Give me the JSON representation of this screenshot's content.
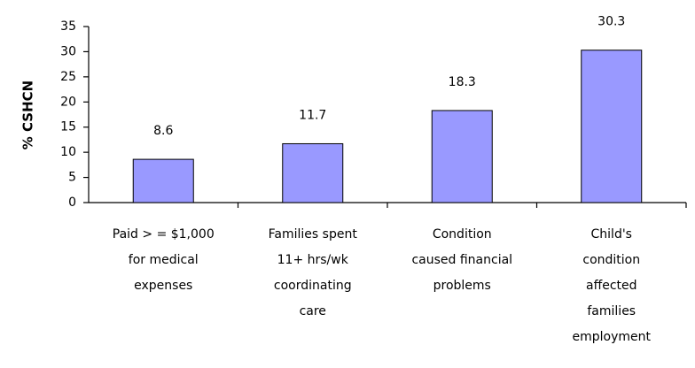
{
  "chart_data": {
    "type": "bar",
    "y_label": "% CSHCN",
    "categories": [
      "Paid > = $1,000\nfor medical\nexpenses",
      "Families spent\n11+ hrs/wk\ncoordinating\ncare",
      "Condition\ncaused financial\nproblems",
      "Child's\ncondition\naffected\nfamilies\nemployment"
    ],
    "values": [
      8.6,
      11.7,
      18.3,
      30.3
    ],
    "color": "#9999ff",
    "ylim": [
      0,
      35
    ],
    "yticks": [
      0,
      5,
      10,
      15,
      20,
      25,
      30,
      35
    ],
    "grid": false
  }
}
